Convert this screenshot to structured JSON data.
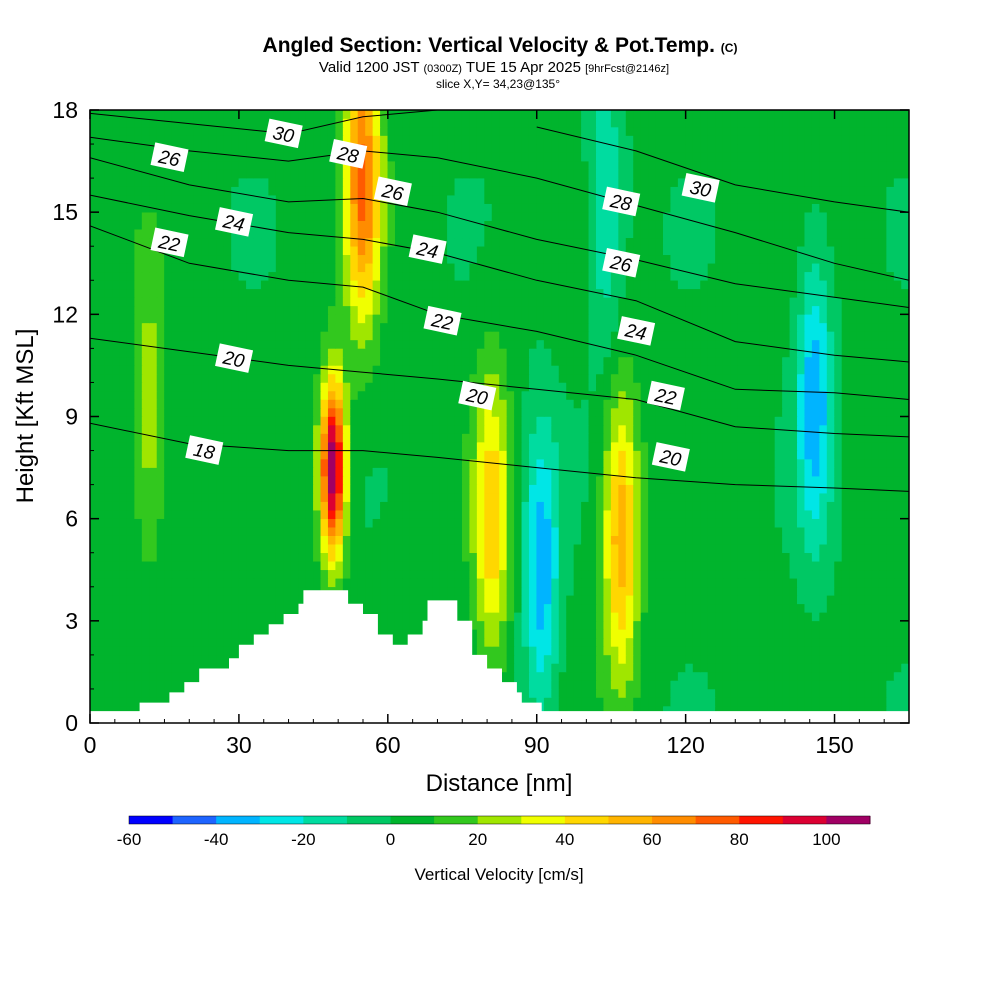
{
  "header": {
    "title": "Angled Section: Vertical Velocity & Pot.Temp.",
    "copyright": "(C)",
    "valid_prefix": "Valid 1200 JST",
    "valid_utc": "(0300Z)",
    "valid_date": "TUE 15 Apr 2025",
    "forecast": "[9hrFcst@2146z]",
    "slice": "slice X,Y= 34,23@135°"
  },
  "chart_data": {
    "type": "heatmap",
    "xlabel": "Distance [nm]",
    "ylabel": "Height [Kft MSL]",
    "xlim": [
      0,
      165
    ],
    "ylim": [
      0,
      18
    ],
    "xticks": [
      0,
      30,
      60,
      90,
      120,
      150
    ],
    "yticks": [
      0,
      3,
      6,
      9,
      12,
      15,
      18
    ],
    "colorbar": {
      "label": "Vertical Velocity [cm/s]",
      "ticks": [
        -60,
        -40,
        -20,
        0,
        20,
        40,
        60,
        80,
        100
      ],
      "bins": [
        -60,
        -50,
        -40,
        -30,
        -20,
        -10,
        0,
        10,
        20,
        30,
        40,
        50,
        60,
        70,
        80,
        90,
        100,
        110
      ],
      "colors": [
        "#0000ff",
        "#1e64ff",
        "#00b4ff",
        "#00e6e6",
        "#00dca0",
        "#00c864",
        "#00b42d",
        "#32c81e",
        "#a0e600",
        "#f0ff00",
        "#ffd700",
        "#ffb400",
        "#ff8c00",
        "#ff5a00",
        "#ff1400",
        "#dc0032",
        "#a00064",
        "#64008c"
      ]
    },
    "velocity_features": [
      {
        "kind": "updraft core",
        "x": 49,
        "y": 7.5,
        "peak": 110
      },
      {
        "kind": "updraft",
        "x": 55,
        "y": 16,
        "peak": 70
      },
      {
        "kind": "updraft",
        "x": 81,
        "y": 6,
        "peak": 45
      },
      {
        "kind": "updraft",
        "x": 107,
        "y": 5.5,
        "peak": 55
      },
      {
        "kind": "updraft",
        "x": 12,
        "y": 9,
        "peak": 25
      },
      {
        "kind": "downdraft",
        "x": 146,
        "y": 9.5,
        "peak": -40
      },
      {
        "kind": "downdraft",
        "x": 91,
        "y": 4.5,
        "peak": -40
      },
      {
        "kind": "downdraft",
        "x": 104,
        "y": 15,
        "peak": -25
      }
    ],
    "theta_contours": [
      {
        "value": 30,
        "label": "30",
        "points": [
          [
            0,
            17.9
          ],
          [
            20,
            17.6
          ],
          [
            40,
            17.3
          ],
          [
            55,
            17.8
          ],
          [
            70,
            18.0
          ]
        ]
      },
      {
        "value": 30,
        "label": "30",
        "points": [
          [
            90,
            17.5
          ],
          [
            110,
            16.8
          ],
          [
            130,
            15.8
          ],
          [
            150,
            15.3
          ],
          [
            165,
            15.0
          ]
        ]
      },
      {
        "value": 28,
        "label": "28",
        "points": [
          [
            0,
            17.2
          ],
          [
            20,
            16.8
          ],
          [
            40,
            16.5
          ],
          [
            55,
            16.8
          ],
          [
            70,
            16.6
          ],
          [
            90,
            16.0
          ],
          [
            110,
            15.2
          ],
          [
            130,
            14.4
          ],
          [
            150,
            13.5
          ],
          [
            165,
            13.0
          ]
        ]
      },
      {
        "value": 26,
        "label": "26",
        "points": [
          [
            0,
            16.6
          ],
          [
            20,
            15.8
          ],
          [
            40,
            15.3
          ],
          [
            55,
            15.4
          ],
          [
            70,
            15.0
          ],
          [
            90,
            14.2
          ],
          [
            110,
            13.6
          ],
          [
            130,
            12.9
          ],
          [
            150,
            12.5
          ],
          [
            165,
            12.2
          ]
        ]
      },
      {
        "value": 24,
        "label": "24",
        "points": [
          [
            0,
            15.5
          ],
          [
            20,
            14.9
          ],
          [
            40,
            14.4
          ],
          [
            55,
            14.2
          ],
          [
            70,
            13.8
          ],
          [
            90,
            13.0
          ],
          [
            110,
            12.4
          ],
          [
            130,
            11.2
          ],
          [
            150,
            10.8
          ],
          [
            165,
            10.6
          ]
        ]
      },
      {
        "value": 22,
        "label": "22",
        "points": [
          [
            0,
            14.6
          ],
          [
            20,
            13.5
          ],
          [
            40,
            13.0
          ],
          [
            55,
            12.8
          ],
          [
            70,
            12.0
          ],
          [
            90,
            11.5
          ],
          [
            110,
            10.8
          ],
          [
            130,
            9.8
          ],
          [
            150,
            9.7
          ],
          [
            165,
            9.5
          ]
        ]
      },
      {
        "value": 20,
        "label": "20",
        "points": [
          [
            0,
            11.3
          ],
          [
            20,
            10.9
          ],
          [
            40,
            10.5
          ],
          [
            55,
            10.3
          ],
          [
            70,
            10.1
          ],
          [
            90,
            9.8
          ],
          [
            110,
            9.5
          ],
          [
            130,
            8.7
          ],
          [
            150,
            8.5
          ],
          [
            165,
            8.4
          ]
        ]
      },
      {
        "value": 18,
        "label": "18",
        "points": [
          [
            0,
            8.8
          ],
          [
            20,
            8.2
          ],
          [
            40,
            8.0
          ],
          [
            55,
            8.0
          ],
          [
            70,
            7.8
          ],
          [
            90,
            7.5
          ],
          [
            110,
            7.2
          ],
          [
            130,
            7.0
          ],
          [
            150,
            6.9
          ],
          [
            165,
            6.8
          ]
        ]
      }
    ],
    "contour_labels": [
      {
        "text": "30",
        "x": 39,
        "y": 17.3
      },
      {
        "text": "28",
        "x": 52,
        "y": 16.7
      },
      {
        "text": "26",
        "x": 16,
        "y": 16.6
      },
      {
        "text": "26",
        "x": 61,
        "y": 15.6
      },
      {
        "text": "24",
        "x": 29,
        "y": 14.7
      },
      {
        "text": "24",
        "x": 68,
        "y": 13.9
      },
      {
        "text": "22",
        "x": 16,
        "y": 14.1
      },
      {
        "text": "22",
        "x": 71,
        "y": 11.8
      },
      {
        "text": "20",
        "x": 29,
        "y": 10.7
      },
      {
        "text": "20",
        "x": 78,
        "y": 9.6
      },
      {
        "text": "18",
        "x": 23,
        "y": 8.0
      },
      {
        "text": "28",
        "x": 107,
        "y": 15.3
      },
      {
        "text": "26",
        "x": 107,
        "y": 13.5
      },
      {
        "text": "24",
        "x": 110,
        "y": 11.5
      },
      {
        "text": "22",
        "x": 116,
        "y": 9.6
      },
      {
        "text": "20",
        "x": 117,
        "y": 7.8
      },
      {
        "text": "30",
        "x": 123,
        "y": 15.7
      }
    ],
    "terrain": [
      [
        0,
        0.35
      ],
      [
        10,
        0.35
      ],
      [
        10,
        0.6
      ],
      [
        16,
        0.6
      ],
      [
        16,
        0.9
      ],
      [
        19,
        0.9
      ],
      [
        19,
        1.2
      ],
      [
        22,
        1.2
      ],
      [
        22,
        1.6
      ],
      [
        28,
        1.6
      ],
      [
        28,
        1.9
      ],
      [
        30,
        1.9
      ],
      [
        30,
        2.3
      ],
      [
        33,
        2.3
      ],
      [
        33,
        2.6
      ],
      [
        36,
        2.6
      ],
      [
        36,
        2.9
      ],
      [
        39,
        2.9
      ],
      [
        39,
        3.2
      ],
      [
        42,
        3.2
      ],
      [
        42,
        3.5
      ],
      [
        43,
        3.5
      ],
      [
        43,
        3.9
      ],
      [
        52,
        3.9
      ],
      [
        52,
        3.5
      ],
      [
        55,
        3.5
      ],
      [
        55,
        3.2
      ],
      [
        58,
        3.2
      ],
      [
        58,
        2.6
      ],
      [
        61,
        2.6
      ],
      [
        61,
        2.3
      ],
      [
        64,
        2.3
      ],
      [
        64,
        2.6
      ],
      [
        67,
        2.6
      ],
      [
        67,
        3.0
      ],
      [
        68,
        3.0
      ],
      [
        68,
        3.6
      ],
      [
        74,
        3.6
      ],
      [
        74,
        3.0
      ],
      [
        77,
        3.0
      ],
      [
        77,
        2.0
      ],
      [
        80,
        2.0
      ],
      [
        80,
        1.6
      ],
      [
        83,
        1.6
      ],
      [
        83,
        1.2
      ],
      [
        86,
        1.2
      ],
      [
        86,
        0.9
      ],
      [
        87,
        0.9
      ],
      [
        87,
        0.6
      ],
      [
        91,
        0.6
      ],
      [
        91,
        0.35
      ],
      [
        165,
        0.35
      ]
    ]
  }
}
